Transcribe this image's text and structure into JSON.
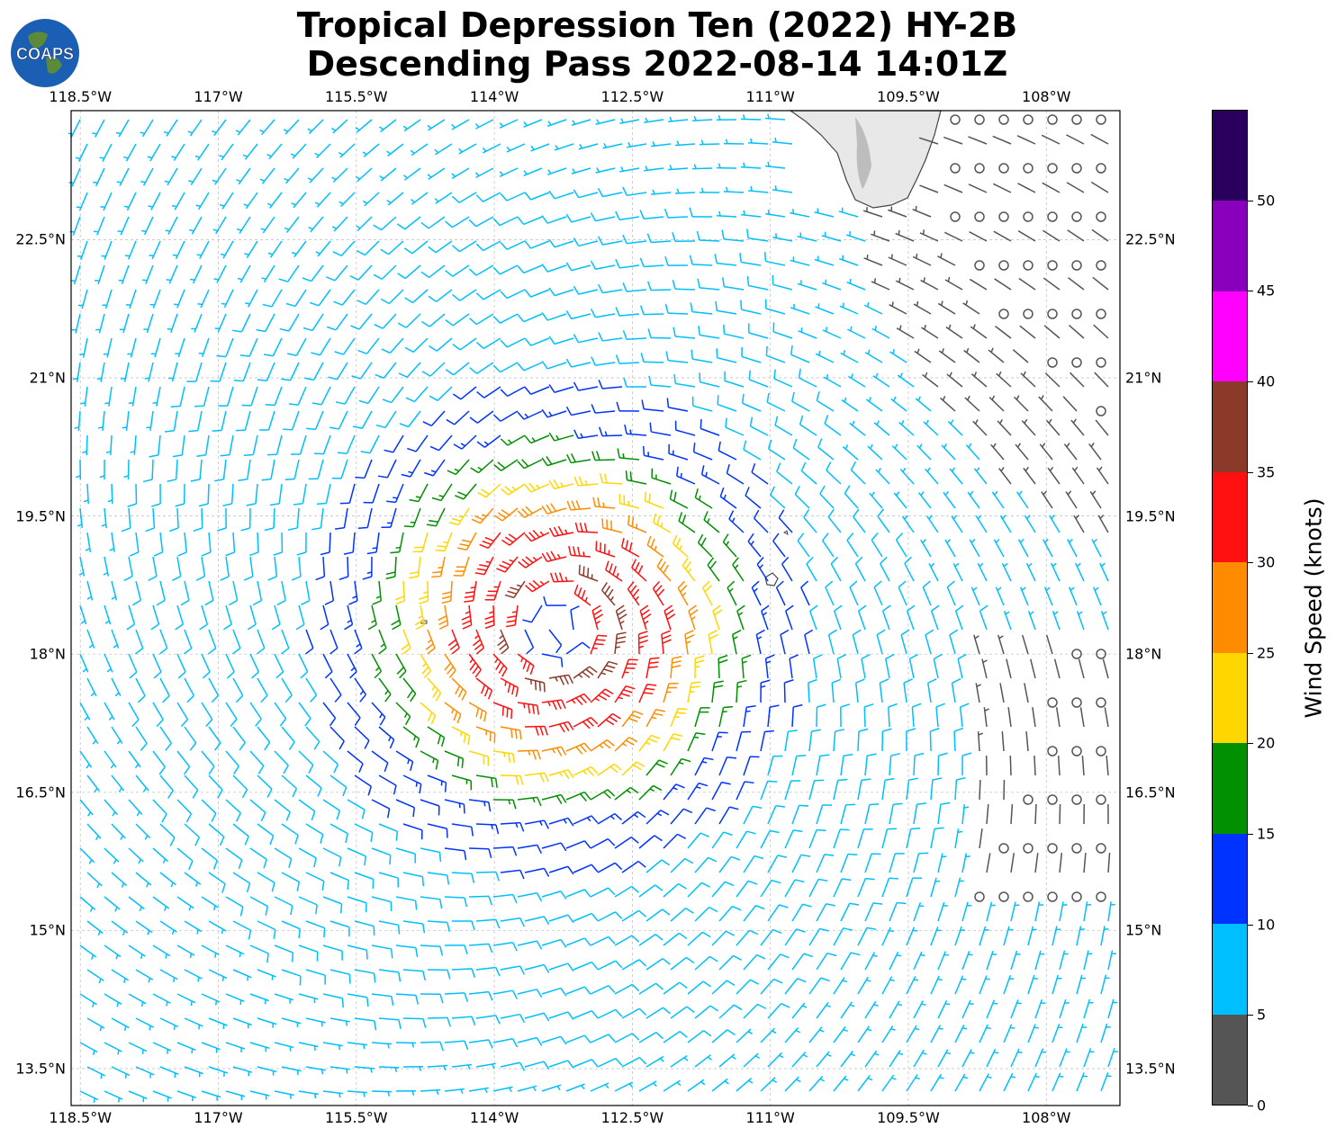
{
  "title_line1": "Tropical Depression Ten (2022) HY-2B",
  "title_line2": "Descending Pass 2022-08-14 14:01Z",
  "logo_text": "COAPS",
  "chart_data": {
    "type": "wind_barbs",
    "lon_ticks": [
      "118.5°W",
      "117°W",
      "115.5°W",
      "114°W",
      "112.5°W",
      "111°W",
      "109.5°W",
      "108°W"
    ],
    "lat_ticks": [
      "22.5°N",
      "21°N",
      "19.5°N",
      "18°N",
      "16.5°N",
      "15°N",
      "13.5°N"
    ],
    "lon_values": [
      -118.5,
      -117,
      -115.5,
      -114,
      -112.5,
      -111,
      -109.5,
      -108
    ],
    "lat_values": [
      22.5,
      21,
      19.5,
      18,
      16.5,
      15,
      13.5
    ],
    "lon_range": [
      -118.6,
      -107.2
    ],
    "lat_range": [
      13.1,
      23.9
    ],
    "storm_center": {
      "lon": -113.3,
      "lat": 18.3
    },
    "grid": true,
    "colorbar": {
      "label": "Wind Speed (knots)",
      "ticks": [
        "0",
        "5",
        "10",
        "15",
        "20",
        "25",
        "30",
        "35",
        "40",
        "45",
        "50"
      ],
      "bins": [
        {
          "min": 0,
          "max": 5,
          "color": "#555555"
        },
        {
          "min": 5,
          "max": 10,
          "color": "#00bfff"
        },
        {
          "min": 10,
          "max": 15,
          "color": "#0033ff"
        },
        {
          "min": 15,
          "max": 20,
          "color": "#009000"
        },
        {
          "min": 20,
          "max": 25,
          "color": "#ffd700"
        },
        {
          "min": 25,
          "max": 30,
          "color": "#ff8c00"
        },
        {
          "min": 30,
          "max": 35,
          "color": "#ff1010"
        },
        {
          "min": 35,
          "max": 40,
          "color": "#8b3a2a"
        },
        {
          "min": 40,
          "max": 45,
          "color": "#ff00ff"
        },
        {
          "min": 45,
          "max": 50,
          "color": "#8800bb"
        },
        {
          "min": 50,
          "max": 55,
          "color": "#2a005e"
        }
      ]
    }
  }
}
